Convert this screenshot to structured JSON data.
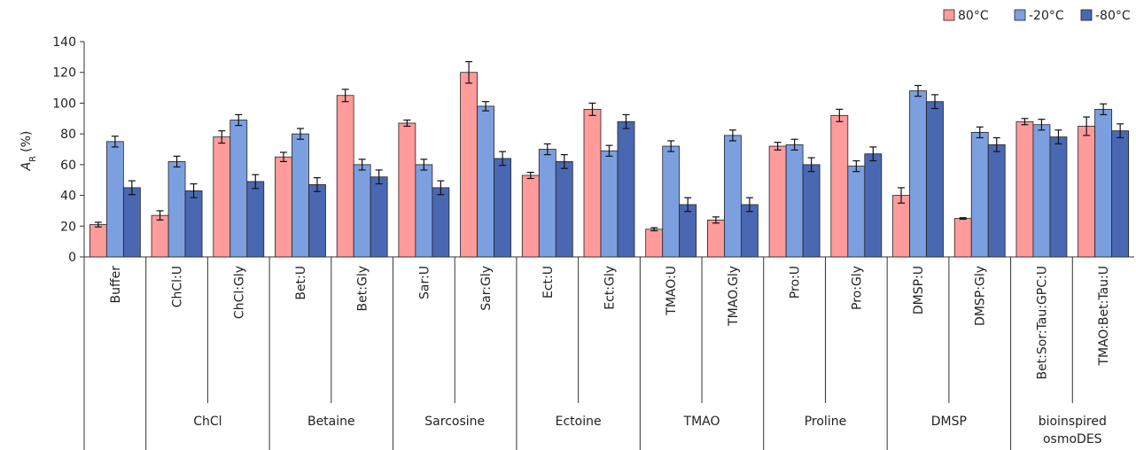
{
  "chart_data": {
    "type": "bar",
    "ylabel": {
      "main": "A",
      "subscript": "R",
      "unit": "(%)"
    },
    "categories": [
      "Buffer",
      "ChCl:U",
      "ChCl:Gly",
      "Bet:U",
      "Bet:Gly",
      "Sar:U",
      "Sar:Gly",
      "Ect:U",
      "Ect:Gly",
      "TMAO:U",
      "TMAO.Gly",
      "Pro:U",
      "Pro:Gly",
      "DMSP:U",
      "DMSP:Gly",
      "Bet:Sor:Tau:GPC:U",
      "TMAO:Bet:Tau:U"
    ],
    "category_groups": [
      null,
      "ChCl",
      "ChCl",
      "Betaine",
      "Betaine",
      "Sarcosine",
      "Sarcosine",
      "Ectoine",
      "Ectoine",
      "TMAO",
      "TMAO",
      "Proline",
      "Proline",
      "DMSP",
      "DMSP",
      "bioinspired osmoDES",
      "bioinspired osmoDES"
    ],
    "series": [
      {
        "name": "80°C",
        "color": "#ff9b9b",
        "values": [
          21,
          27,
          78,
          65,
          105,
          87,
          120,
          53,
          96,
          18,
          24,
          72,
          92,
          40,
          25,
          88,
          85
        ],
        "errors": [
          1.5,
          3,
          4,
          3,
          4,
          2,
          7,
          2,
          4,
          1,
          2,
          2.5,
          4,
          5,
          0.5,
          2,
          6
        ]
      },
      {
        "name": "-20°C",
        "color": "#7c9fe0",
        "values": [
          75,
          62,
          89,
          80,
          60,
          60,
          98,
          70,
          69,
          72,
          79,
          73,
          59,
          108,
          81,
          86,
          96
        ],
        "errors": [
          3.5,
          3.5,
          3.5,
          3.5,
          3.5,
          3.5,
          3,
          3.5,
          3.5,
          3.5,
          3.5,
          3.5,
          3.5,
          3.5,
          3.5,
          3.5,
          3.5
        ]
      },
      {
        "name": "-80°C",
        "color": "#4a68b2",
        "values": [
          45,
          43,
          49,
          47,
          52,
          45,
          64,
          62,
          88,
          34,
          34,
          60,
          67,
          101,
          73,
          78,
          82
        ],
        "errors": [
          4.5,
          4.5,
          4.5,
          4.5,
          4.5,
          4.5,
          4.5,
          4.5,
          4.5,
          4.5,
          4.5,
          4.5,
          4.5,
          4.5,
          4.5,
          4.5,
          4.5
        ]
      }
    ],
    "ylim": [
      0,
      140
    ],
    "yticks": [
      0,
      20,
      40,
      60,
      80,
      100,
      120,
      140
    ],
    "legend": "top-right"
  }
}
